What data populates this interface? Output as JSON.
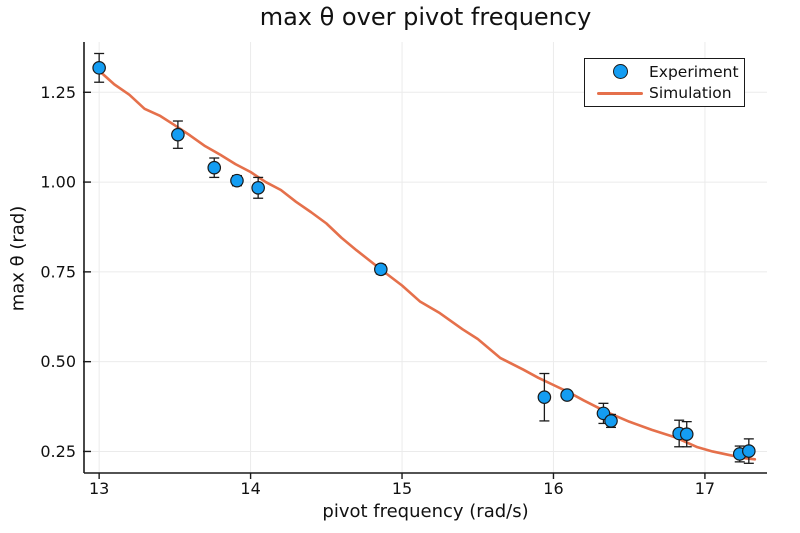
{
  "figure": {
    "title": "max θ over pivot frequency",
    "xlabel": "pivot frequency (rad/s)",
    "ylabel": "max θ (rad)"
  },
  "legend": {
    "entries": [
      {
        "label": "Experiment",
        "icon": "circle-marker-icon",
        "color": "#149df2"
      },
      {
        "label": "Simulation",
        "icon": "line-icon",
        "color": "#e5704b"
      }
    ]
  },
  "colors": {
    "experiment_marker": "#149df2",
    "marker_stroke": "#1a1a1a",
    "simulation_line": "#e5704b",
    "error_bar": "#1a1a1a",
    "axis": "#1a1a1a",
    "grid": "#ebebeb",
    "text": "#111111"
  },
  "chart_data": {
    "type": "scatter",
    "title": "max θ over pivot frequency",
    "xlabel": "pivot frequency (rad/s)",
    "ylabel": "max θ (rad)",
    "xlim": [
      12.9,
      17.41
    ],
    "ylim": [
      0.19,
      1.39
    ],
    "xticks": [
      13,
      14,
      15,
      16,
      17
    ],
    "xtick_labels": [
      "13",
      "14",
      "15",
      "16",
      "17"
    ],
    "yticks": [
      0.25,
      0.5,
      0.75,
      1.0,
      1.25
    ],
    "ytick_labels": [
      "0.25",
      "0.50",
      "0.75",
      "1.00",
      "1.25"
    ],
    "grid": true,
    "legend_position": "top-right",
    "series": [
      {
        "name": "Experiment",
        "type": "scatter",
        "marker": "circle",
        "color": "#149df2",
        "points": [
          {
            "x": 13.0,
            "y": 1.318,
            "yerr": 0.04
          },
          {
            "x": 13.52,
            "y": 1.132,
            "yerr": 0.038
          },
          {
            "x": 13.76,
            "y": 1.04,
            "yerr": 0.027
          },
          {
            "x": 13.91,
            "y": 1.004,
            "yerr": 0.014
          },
          {
            "x": 14.05,
            "y": 0.984,
            "yerr": 0.029
          },
          {
            "x": 14.86,
            "y": 0.757,
            "yerr": 0.013
          },
          {
            "x": 15.94,
            "y": 0.401,
            "yerr": 0.066
          },
          {
            "x": 16.09,
            "y": 0.407,
            "yerr": 0.01
          },
          {
            "x": 16.33,
            "y": 0.356,
            "yerr": 0.028
          },
          {
            "x": 16.38,
            "y": 0.335,
            "yerr": 0.018
          },
          {
            "x": 16.83,
            "y": 0.3,
            "yerr": 0.037
          },
          {
            "x": 16.88,
            "y": 0.298,
            "yerr": 0.035
          },
          {
            "x": 17.23,
            "y": 0.243,
            "yerr": 0.022
          },
          {
            "x": 17.29,
            "y": 0.251,
            "yerr": 0.034
          }
        ]
      },
      {
        "name": "Simulation",
        "type": "line",
        "color": "#e5704b",
        "x": [
          13.0,
          13.1,
          13.2,
          13.3,
          13.4,
          13.5,
          13.6,
          13.7,
          13.8,
          13.9,
          14.0,
          14.1,
          14.2,
          14.3,
          14.4,
          14.5,
          14.6,
          14.7,
          14.86,
          15.0,
          15.12,
          15.25,
          15.4,
          15.5,
          15.65,
          15.8,
          15.9,
          16.0,
          16.1,
          16.2,
          16.35,
          16.5,
          16.65,
          16.8,
          16.95,
          17.05,
          17.15,
          17.25,
          17.33
        ],
        "y": [
          1.31,
          1.272,
          1.243,
          1.204,
          1.185,
          1.158,
          1.13,
          1.1,
          1.076,
          1.05,
          1.028,
          1.0,
          0.978,
          0.945,
          0.916,
          0.885,
          0.845,
          0.81,
          0.757,
          0.712,
          0.667,
          0.635,
          0.59,
          0.563,
          0.51,
          0.478,
          0.455,
          0.435,
          0.415,
          0.392,
          0.36,
          0.333,
          0.31,
          0.29,
          0.262,
          0.25,
          0.241,
          0.232,
          0.228
        ]
      }
    ]
  }
}
